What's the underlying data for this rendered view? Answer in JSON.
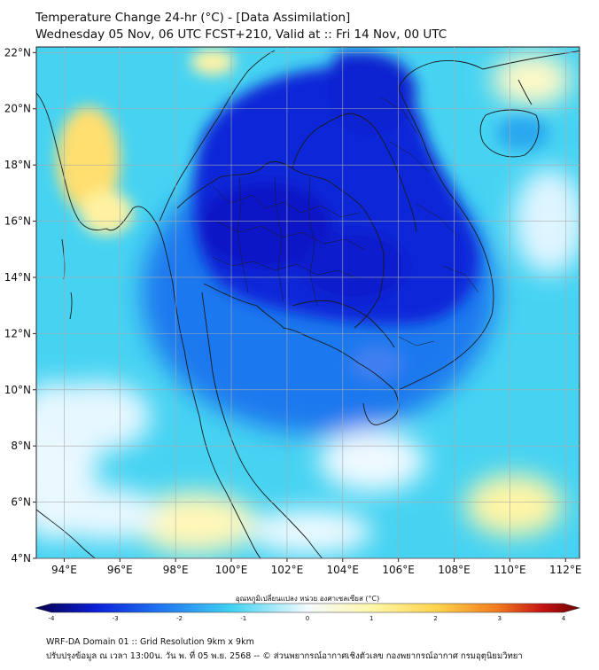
{
  "header": {
    "title_line1": "Temperature Change 24-hr (°C) - [Data Assimilation]",
    "title_line2": "Wednesday 05 Nov, 06 UTC FCST+210, Valid at :: Fri 14 Nov, 00 UTC"
  },
  "map": {
    "lon_ticks": [
      "94°E",
      "96°E",
      "98°E",
      "100°E",
      "102°E",
      "104°E",
      "106°E",
      "108°E",
      "110°E",
      "112°E"
    ],
    "lat_ticks": [
      "22°N",
      "20°N",
      "18°N",
      "16°N",
      "14°N",
      "12°N",
      "10°N",
      "8°N",
      "6°N",
      "4°N"
    ],
    "lon_range": [
      93,
      112.5
    ],
    "lat_range": [
      4,
      22.2
    ],
    "field_name": "24-hr temperature change",
    "cooling_centre": "Thailand / Laos / Cambodia",
    "colors": {
      "strong_cool": "#0a1fd6",
      "cool": "#1e6ef0",
      "mild_cool": "#3fd2f2",
      "neutral": "#f4fbff",
      "warm": "#fff7a8",
      "warmer": "#ffd24a",
      "border": "#1a1a1a"
    }
  },
  "colorbar": {
    "label": "อุณหภูมิเปลี่ยนแปลง หน่วย องศาเซลเซียส (°C)",
    "ticks": [
      "-4",
      "-3",
      "-2",
      "-1",
      "0",
      "1",
      "2",
      "3",
      "4"
    ],
    "stops": [
      "#08004d",
      "#0a1fd6",
      "#1e6ef0",
      "#3fd2f2",
      "#f4fbff",
      "#fff7a8",
      "#ffd24a",
      "#f07a1e",
      "#c81414",
      "#6e0000"
    ]
  },
  "footer": {
    "line1": "WRF-DA Domain 01 :: Grid Resolution 9km x 9km",
    "line2": "ปรับปรุงข้อมูล ณ เวลา 13:00น. วัน พ. ที่ 05 พ.ย. 2568 -- © ส่วนพยากรณ์อากาศเชิงตัวเลข กองพยากรณ์อากาศ กรมอุตุนิยมวิทยา"
  }
}
